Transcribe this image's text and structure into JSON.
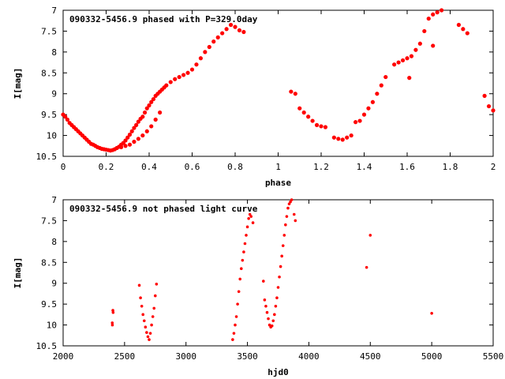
{
  "colors": {
    "series": "#ff0000",
    "axes": "#000000",
    "background": "#ffffff"
  },
  "chart_data": [
    {
      "type": "scatter",
      "title": "090332-5456.9 phased with P=329.0day",
      "xlabel": "phase",
      "ylabel": "I[mag]",
      "xlim": [
        0,
        2
      ],
      "ylim": [
        7,
        10.5
      ],
      "y_inverted": true,
      "grid": false,
      "xticks": [
        "0",
        "0.2",
        "0.4",
        "0.6",
        "0.8",
        "1",
        "1.2",
        "1.4",
        "1.6",
        "1.8",
        "2"
      ],
      "yticks": [
        "7",
        "7.5",
        "8",
        "8.5",
        "9",
        "9.5",
        "10",
        "10.5"
      ],
      "series": [
        {
          "color": "#ff0000",
          "x": [
            0.0,
            0.01,
            0.02,
            0.03,
            0.04,
            0.05,
            0.06,
            0.07,
            0.08,
            0.09,
            0.1,
            0.11,
            0.12,
            0.13,
            0.14,
            0.15,
            0.16,
            0.17,
            0.18,
            0.19,
            0.2,
            0.21,
            0.22,
            0.23,
            0.24,
            0.25,
            0.26,
            0.27,
            0.28,
            0.29,
            0.3,
            0.31,
            0.32,
            0.33,
            0.34,
            0.35,
            0.36,
            0.37,
            0.38,
            0.39,
            0.4,
            0.41,
            0.42,
            0.43,
            0.44,
            0.45,
            0.46,
            0.47,
            0.48,
            0.5,
            0.52,
            0.54,
            0.56,
            0.58,
            0.6,
            0.62,
            0.64,
            0.66,
            0.68,
            0.7,
            0.72,
            0.74,
            0.76,
            0.78,
            0.8,
            0.82,
            0.84,
            0.25,
            0.27,
            0.29,
            0.31,
            0.33,
            0.35,
            0.37,
            0.39,
            0.41,
            0.43,
            0.45,
            1.06,
            1.08,
            1.1,
            1.12,
            1.14,
            1.16,
            1.18,
            1.2,
            1.22,
            1.26,
            1.28,
            1.3,
            1.32,
            1.34,
            1.36,
            1.38,
            1.4,
            1.42,
            1.44,
            1.46,
            1.48,
            1.5,
            1.54,
            1.56,
            1.58,
            1.6,
            1.62,
            1.64,
            1.66,
            1.68,
            1.7,
            1.72,
            1.74,
            1.76,
            1.72,
            1.61,
            1.84,
            1.86,
            1.88,
            1.96,
            1.98,
            2.0
          ],
          "y": [
            9.5,
            9.55,
            9.62,
            9.7,
            9.75,
            9.8,
            9.85,
            9.9,
            9.95,
            10.0,
            10.05,
            10.1,
            10.15,
            10.2,
            10.22,
            10.25,
            10.28,
            10.3,
            10.32,
            10.33,
            10.34,
            10.35,
            10.36,
            10.35,
            10.33,
            10.3,
            10.27,
            10.22,
            10.18,
            10.12,
            10.05,
            9.98,
            9.9,
            9.82,
            9.75,
            9.67,
            9.6,
            9.55,
            9.45,
            9.35,
            9.28,
            9.2,
            9.13,
            9.05,
            9.0,
            8.95,
            8.9,
            8.85,
            8.8,
            8.72,
            8.65,
            8.6,
            8.55,
            8.5,
            8.42,
            8.3,
            8.15,
            8.0,
            7.88,
            7.75,
            7.65,
            7.55,
            7.45,
            7.35,
            7.4,
            7.48,
            7.52,
            10.3,
            10.28,
            10.25,
            10.22,
            10.15,
            10.08,
            10.0,
            9.9,
            9.78,
            9.62,
            9.45,
            8.95,
            9.0,
            9.35,
            9.45,
            9.55,
            9.65,
            9.75,
            9.78,
            9.8,
            10.05,
            10.08,
            10.1,
            10.05,
            10.0,
            9.68,
            9.65,
            9.5,
            9.35,
            9.2,
            9.0,
            8.8,
            8.6,
            8.3,
            8.25,
            8.2,
            8.15,
            8.1,
            7.95,
            7.8,
            7.5,
            7.2,
            7.1,
            7.05,
            7.0,
            7.85,
            8.62,
            7.35,
            7.45,
            7.55,
            9.05,
            9.3,
            9.4
          ]
        }
      ]
    },
    {
      "type": "scatter",
      "title": "090332-5456.9 not phased light curve",
      "xlabel": "hjd0",
      "ylabel": "I[mag]",
      "xlim": [
        2000,
        5500
      ],
      "ylim": [
        7,
        10.5
      ],
      "y_inverted": true,
      "grid": false,
      "xticks": [
        "2000",
        "2500",
        "3000",
        "3500",
        "4000",
        "4500",
        "5000",
        "5500"
      ],
      "yticks": [
        "7",
        "7.5",
        "8",
        "8.5",
        "9",
        "9.5",
        "10",
        "10.5"
      ],
      "series": [
        {
          "color": "#ff0000",
          "x": [
            2400,
            2401,
            2405,
            2407,
            2620,
            2630,
            2640,
            2650,
            2660,
            2670,
            2680,
            2690,
            2700,
            2710,
            2720,
            2730,
            2740,
            2750,
            2760,
            3380,
            3390,
            3400,
            3410,
            3420,
            3430,
            3440,
            3450,
            3460,
            3470,
            3480,
            3490,
            3500,
            3510,
            3520,
            3530,
            3545,
            3630,
            3640,
            3650,
            3660,
            3670,
            3680,
            3690,
            3700,
            3710,
            3720,
            3730,
            3740,
            3750,
            3760,
            3770,
            3780,
            3790,
            3800,
            3810,
            3820,
            3830,
            3840,
            3850,
            3860,
            3880,
            3890,
            4470,
            4500,
            5000
          ],
          "y": [
            9.95,
            10.0,
            9.65,
            9.7,
            9.05,
            9.35,
            9.55,
            9.75,
            9.9,
            10.05,
            10.18,
            10.28,
            10.35,
            10.2,
            10.0,
            9.8,
            9.6,
            9.3,
            9.02,
            10.35,
            10.2,
            10.0,
            9.8,
            9.5,
            9.2,
            8.9,
            8.65,
            8.45,
            8.25,
            8.05,
            7.85,
            7.65,
            7.45,
            7.35,
            7.4,
            7.55,
            8.95,
            9.4,
            9.55,
            9.7,
            9.85,
            10.0,
            10.05,
            10.02,
            9.9,
            9.75,
            9.55,
            9.35,
            9.1,
            8.85,
            8.6,
            8.35,
            8.1,
            7.85,
            7.6,
            7.4,
            7.2,
            7.1,
            7.05,
            7.0,
            7.35,
            7.5,
            8.62,
            7.85,
            9.72
          ]
        }
      ]
    }
  ]
}
